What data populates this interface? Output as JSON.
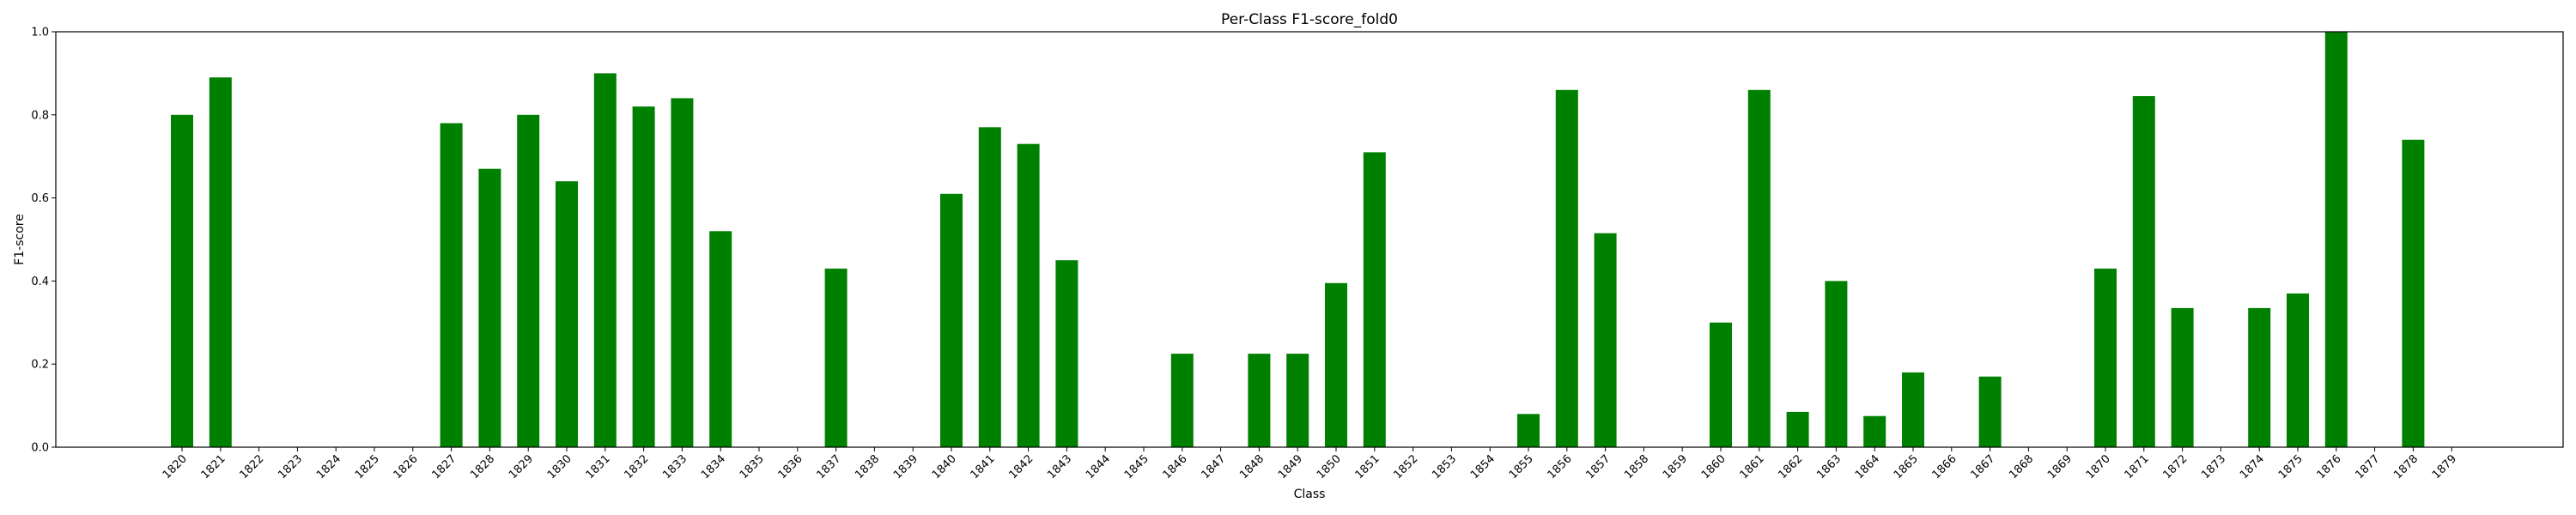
{
  "chart_data": {
    "type": "bar",
    "title": "Per-Class F1-score_fold0",
    "xlabel": "Class",
    "ylabel": "F1-score",
    "ylim": [
      0,
      1.0
    ],
    "yticks": [
      "0.0",
      "0.2",
      "0.4",
      "0.6",
      "0.8",
      "1.0"
    ],
    "bar_color": "#008000",
    "grid": false,
    "categories": [
      "1820",
      "1821",
      "1822",
      "1823",
      "1824",
      "1825",
      "1826",
      "1827",
      "1828",
      "1829",
      "1830",
      "1831",
      "1832",
      "1833",
      "1834",
      "1835",
      "1836",
      "1837",
      "1838",
      "1839",
      "1840",
      "1841",
      "1842",
      "1843",
      "1844",
      "1845",
      "1846",
      "1847",
      "1848",
      "1849",
      "1850",
      "1851",
      "1852",
      "1853",
      "1854",
      "1855",
      "1856",
      "1857",
      "1858",
      "1859",
      "1860",
      "1861",
      "1862",
      "1863",
      "1864",
      "1865",
      "1866",
      "1867",
      "1868",
      "1869",
      "1870",
      "1871",
      "1872",
      "1873",
      "1874",
      "1875",
      "1876",
      "1877",
      "1878",
      "1879"
    ],
    "values": [
      0.8,
      0.89,
      0,
      0,
      0,
      0,
      0,
      0.78,
      0.67,
      0.8,
      0.64,
      0.9,
      0.82,
      0.84,
      0.52,
      0,
      0,
      0.43,
      0,
      0,
      0.61,
      0.77,
      0.73,
      0.45,
      0,
      0,
      0.225,
      0,
      0.225,
      0.225,
      0.395,
      0.71,
      0,
      0,
      0,
      0.08,
      0.86,
      0.515,
      0,
      0,
      0.3,
      0.86,
      0.085,
      0.4,
      0.075,
      0.18,
      0,
      0.17,
      0,
      0,
      0.43,
      0.845,
      0.335,
      0,
      0.335,
      0.37,
      1.0,
      0,
      0.74,
      0
    ]
  }
}
